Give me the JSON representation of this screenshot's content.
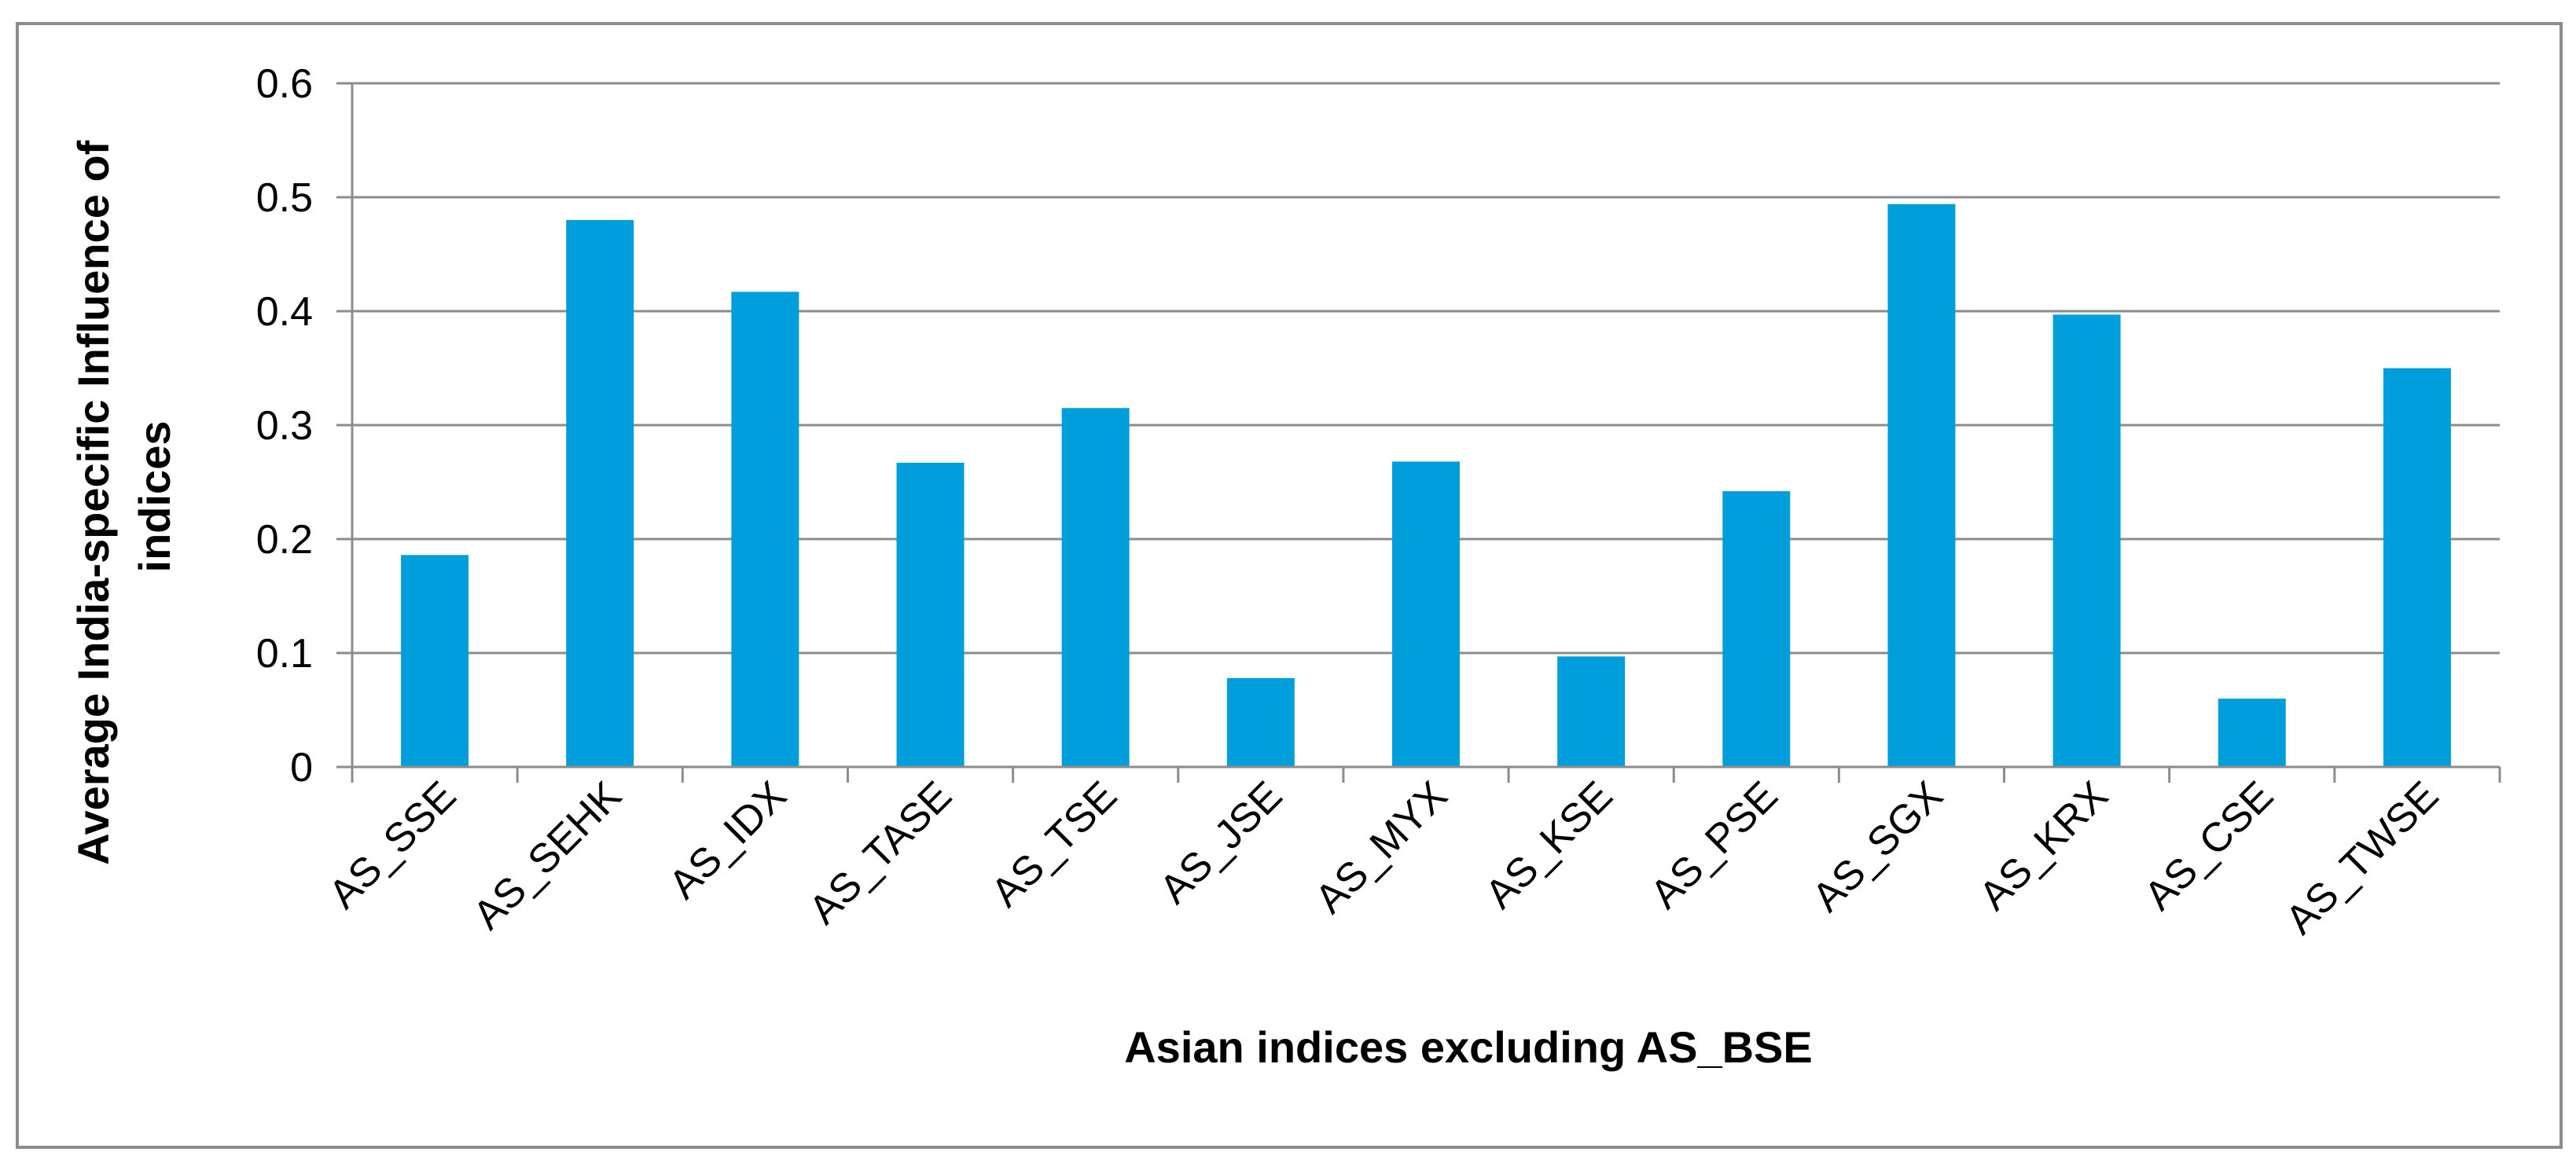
{
  "chart_data": {
    "type": "bar",
    "title": "",
    "xlabel": "Asian indices excluding AS_BSE",
    "ylabel_lines": [
      "Average India-specific Influence of",
      "indices"
    ],
    "categories": [
      "AS_SSE",
      "AS_SEHK",
      "AS_IDX",
      "AS_TASE",
      "AS_TSE",
      "AS_JSE",
      "AS_MYX",
      "AS_KSE",
      "AS_PSE",
      "AS_SGX",
      "AS_KRX",
      "AS_CSE",
      "AS_TWSE"
    ],
    "series": [
      {
        "values": [
          0.186,
          0.48,
          0.417,
          0.267,
          0.315,
          0.078,
          0.268,
          0.097,
          0.242,
          0.494,
          0.397,
          0.06,
          0.35
        ],
        "color": "#009fdb"
      }
    ],
    "ylim": [
      0,
      0.6
    ],
    "yticks": [
      "0",
      "0.1",
      "0.2",
      "0.3",
      "0.4",
      "0.5",
      "0.6"
    ],
    "grid": true,
    "legend": "none"
  }
}
